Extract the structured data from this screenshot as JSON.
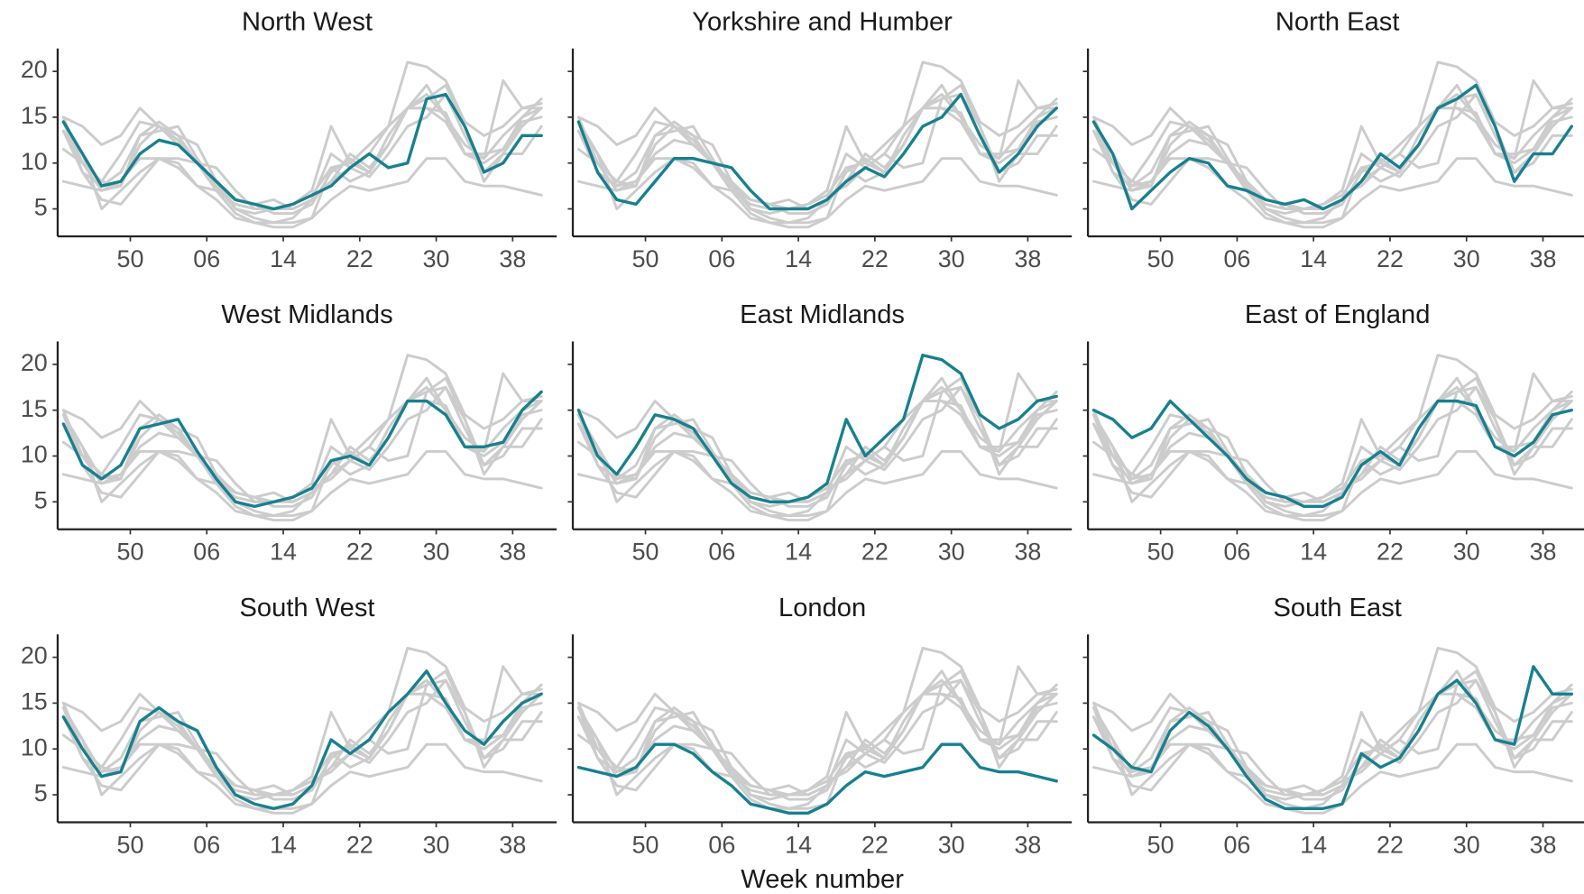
{
  "chart_data": {
    "type": "line",
    "x_label": "Week number",
    "x": [
      43,
      45,
      47,
      49,
      51,
      53,
      55,
      57,
      59,
      61,
      63,
      65,
      67,
      69,
      71,
      73,
      75,
      77,
      79,
      81,
      83,
      85,
      87,
      89,
      91,
      93
    ],
    "xlim": [
      42.4,
      94.6
    ],
    "xticks": [
      50,
      {
        "value": 58,
        "label": "06"
      },
      {
        "value": 66,
        "label": "14"
      },
      {
        "value": 74,
        "label": "22"
      },
      {
        "value": 82,
        "label": "30"
      },
      {
        "value": 90,
        "label": "38"
      }
    ],
    "ylim": [
      2,
      22.5
    ],
    "yticks": [
      5,
      10,
      15,
      20
    ],
    "highlight_color": "#17808f",
    "background_color": "#cccccc",
    "series": [
      {
        "name": "North West",
        "values": [
          14.5,
          11,
          7.5,
          8,
          11,
          12.5,
          12,
          10,
          8,
          6,
          5.5,
          5,
          5.5,
          6.5,
          7.5,
          9.5,
          11,
          9.5,
          10,
          17,
          17.5,
          14,
          9,
          10,
          13,
          13
        ]
      },
      {
        "name": "Yorkshire and Humber",
        "values": [
          14.5,
          9,
          6,
          5.5,
          8,
          10.5,
          10.5,
          10,
          9.5,
          7,
          5,
          5,
          5,
          6,
          8,
          9.5,
          8.5,
          11,
          14,
          15,
          17.5,
          13,
          9,
          11,
          14,
          16
        ]
      },
      {
        "name": "North East",
        "values": [
          14.5,
          11,
          5,
          7,
          9,
          10.5,
          10,
          7.5,
          7,
          6,
          5.5,
          6,
          5,
          6,
          8,
          11,
          9.5,
          12,
          16,
          17,
          18.5,
          14,
          8,
          11,
          11,
          14
        ]
      },
      {
        "name": "West Midlands",
        "values": [
          13.5,
          9,
          7.5,
          9,
          13,
          13.5,
          14,
          10.5,
          7.5,
          5,
          4.5,
          5,
          5.5,
          6.5,
          9.5,
          10,
          9,
          12,
          16,
          16,
          14.5,
          11,
          11,
          11.5,
          15,
          17
        ]
      },
      {
        "name": "East Midlands",
        "values": [
          15,
          10,
          8,
          11,
          14.5,
          14,
          13,
          10,
          7,
          5.5,
          5,
          5,
          5.5,
          7,
          14,
          10,
          12,
          14,
          21,
          20.5,
          19,
          14.5,
          13,
          14,
          16,
          16.5
        ]
      },
      {
        "name": "East of England",
        "values": [
          15,
          14,
          12,
          13,
          16,
          14,
          12,
          10,
          7.5,
          6,
          5.5,
          4.5,
          4.5,
          5.5,
          9,
          10.5,
          9,
          13,
          16,
          16,
          15.5,
          11,
          10,
          11.5,
          14.5,
          15
        ]
      },
      {
        "name": "South West",
        "values": [
          13.5,
          10,
          7,
          7.5,
          13,
          14.5,
          13,
          12,
          8,
          5,
          4,
          3.5,
          4,
          6,
          11,
          9.5,
          11,
          14,
          16,
          18.5,
          15,
          12,
          10.5,
          13,
          15,
          16
        ]
      },
      {
        "name": "London",
        "values": [
          8,
          7.5,
          7,
          8,
          10.5,
          10.5,
          9.5,
          7.5,
          6,
          4,
          3.5,
          3,
          3,
          4,
          6,
          7.5,
          7,
          7.5,
          8,
          10.5,
          10.5,
          8,
          7.5,
          7.5,
          7,
          6.5
        ]
      },
      {
        "name": "South East",
        "values": [
          11.5,
          10,
          8,
          7.5,
          12,
          14,
          12.5,
          10,
          7,
          4.5,
          3.5,
          3.5,
          3.5,
          4,
          9.5,
          8,
          9,
          12,
          16,
          17.5,
          15,
          11,
          10.5,
          19,
          16,
          16
        ]
      }
    ]
  }
}
